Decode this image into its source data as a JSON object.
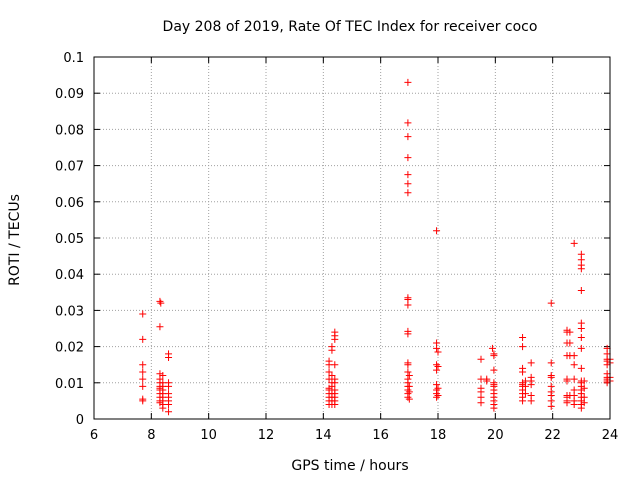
{
  "chart_data": {
    "type": "scatter",
    "title": "Day 208 of 2019, Rate Of TEC Index for receiver coco",
    "xlabel": "GPS time / hours",
    "ylabel": "ROTI / TECUs",
    "xlim": [
      6,
      24
    ],
    "ylim": [
      0,
      0.1
    ],
    "xticks": [
      6,
      8,
      10,
      12,
      14,
      16,
      18,
      20,
      22,
      24
    ],
    "yticks": [
      0,
      0.01,
      0.02,
      0.03,
      0.04,
      0.05,
      0.06,
      0.07,
      0.08,
      0.09,
      0.1
    ],
    "xtick_labels": [
      "6",
      "8",
      "10",
      "12",
      "14",
      "16",
      "18",
      "20",
      "22",
      "24"
    ],
    "ytick_labels": [
      "0",
      "0.01",
      "0.02",
      "0.03",
      "0.04",
      "0.05",
      "0.06",
      "0.07",
      "0.08",
      "0.09",
      "0.1"
    ],
    "grid": true,
    "marker": "+",
    "marker_color": "#ff0000",
    "series": [
      {
        "name": "ROTI",
        "points": [
          [
            7.7,
            0.029
          ],
          [
            7.7,
            0.022
          ],
          [
            7.7,
            0.015
          ],
          [
            7.7,
            0.013
          ],
          [
            7.7,
            0.011
          ],
          [
            7.7,
            0.009
          ],
          [
            7.7,
            0.0055
          ],
          [
            7.7,
            0.005
          ],
          [
            8.3,
            0.0325
          ],
          [
            8.33,
            0.032
          ],
          [
            8.3,
            0.0255
          ],
          [
            8.3,
            0.0125
          ],
          [
            8.3,
            0.011
          ],
          [
            8.3,
            0.01
          ],
          [
            8.3,
            0.009
          ],
          [
            8.3,
            0.0085
          ],
          [
            8.3,
            0.008
          ],
          [
            8.3,
            0.007
          ],
          [
            8.3,
            0.006
          ],
          [
            8.3,
            0.005
          ],
          [
            8.3,
            0.0045
          ],
          [
            8.4,
            0.012
          ],
          [
            8.4,
            0.01
          ],
          [
            8.4,
            0.009
          ],
          [
            8.4,
            0.008
          ],
          [
            8.4,
            0.007
          ],
          [
            8.4,
            0.006
          ],
          [
            8.4,
            0.005
          ],
          [
            8.4,
            0.004
          ],
          [
            8.4,
            0.003
          ],
          [
            8.6,
            0.018
          ],
          [
            8.6,
            0.017
          ],
          [
            8.6,
            0.01
          ],
          [
            8.6,
            0.009
          ],
          [
            8.6,
            0.007
          ],
          [
            8.6,
            0.006
          ],
          [
            8.6,
            0.005
          ],
          [
            8.6,
            0.004
          ],
          [
            8.6,
            0.002
          ],
          [
            14.2,
            0.016
          ],
          [
            14.2,
            0.015
          ],
          [
            14.2,
            0.013
          ],
          [
            14.2,
            0.011
          ],
          [
            14.2,
            0.0085
          ],
          [
            14.2,
            0.008
          ],
          [
            14.2,
            0.007
          ],
          [
            14.2,
            0.006
          ],
          [
            14.2,
            0.005
          ],
          [
            14.2,
            0.004
          ],
          [
            14.3,
            0.02
          ],
          [
            14.3,
            0.019
          ],
          [
            14.3,
            0.012
          ],
          [
            14.3,
            0.01
          ],
          [
            14.3,
            0.009
          ],
          [
            14.3,
            0.008
          ],
          [
            14.3,
            0.007
          ],
          [
            14.3,
            0.006
          ],
          [
            14.3,
            0.005
          ],
          [
            14.3,
            0.004
          ],
          [
            14.4,
            0.024
          ],
          [
            14.4,
            0.023
          ],
          [
            14.4,
            0.022
          ],
          [
            14.4,
            0.015
          ],
          [
            14.4,
            0.011
          ],
          [
            14.4,
            0.01
          ],
          [
            14.4,
            0.008
          ],
          [
            14.4,
            0.007
          ],
          [
            14.4,
            0.006
          ],
          [
            14.4,
            0.005
          ],
          [
            14.4,
            0.004
          ],
          [
            16.95,
            0.093
          ],
          [
            16.95,
            0.0818
          ],
          [
            16.95,
            0.078
          ],
          [
            16.95,
            0.0722
          ],
          [
            16.95,
            0.0675
          ],
          [
            16.95,
            0.065
          ],
          [
            16.95,
            0.0625
          ],
          [
            16.95,
            0.0335
          ],
          [
            16.95,
            0.033
          ],
          [
            16.95,
            0.0315
          ],
          [
            16.95,
            0.0242
          ],
          [
            16.95,
            0.0235
          ],
          [
            16.95,
            0.0155
          ],
          [
            16.95,
            0.015
          ],
          [
            16.95,
            0.013
          ],
          [
            16.95,
            0.011
          ],
          [
            16.95,
            0.01
          ],
          [
            16.95,
            0.009
          ],
          [
            16.95,
            0.008
          ],
          [
            16.95,
            0.007
          ],
          [
            16.95,
            0.006
          ],
          [
            17.0,
            0.012
          ],
          [
            17.0,
            0.009
          ],
          [
            17.0,
            0.0075
          ],
          [
            17.0,
            0.0055
          ],
          [
            17.95,
            0.052
          ],
          [
            17.95,
            0.021
          ],
          [
            17.95,
            0.0195
          ],
          [
            17.95,
            0.015
          ],
          [
            17.95,
            0.0135
          ],
          [
            17.95,
            0.0095
          ],
          [
            17.95,
            0.008
          ],
          [
            17.95,
            0.007
          ],
          [
            17.95,
            0.006
          ],
          [
            18.0,
            0.0185
          ],
          [
            18.0,
            0.0145
          ],
          [
            18.0,
            0.0085
          ],
          [
            18.0,
            0.0065
          ],
          [
            19.5,
            0.0165
          ],
          [
            19.5,
            0.011
          ],
          [
            19.5,
            0.0085
          ],
          [
            19.5,
            0.0075
          ],
          [
            19.5,
            0.006
          ],
          [
            19.5,
            0.0045
          ],
          [
            19.7,
            0.011
          ],
          [
            19.7,
            0.0105
          ],
          [
            19.9,
            0.0195
          ],
          [
            19.95,
            0.018
          ],
          [
            19.95,
            0.0175
          ],
          [
            19.95,
            0.0135
          ],
          [
            19.95,
            0.01
          ],
          [
            19.95,
            0.0095
          ],
          [
            19.95,
            0.009
          ],
          [
            19.95,
            0.008
          ],
          [
            19.95,
            0.007
          ],
          [
            19.95,
            0.006
          ],
          [
            19.95,
            0.005
          ],
          [
            19.95,
            0.004
          ],
          [
            19.95,
            0.003
          ],
          [
            20.95,
            0.0225
          ],
          [
            20.95,
            0.02
          ],
          [
            20.95,
            0.014
          ],
          [
            20.95,
            0.013
          ],
          [
            20.95,
            0.01
          ],
          [
            20.95,
            0.0095
          ],
          [
            20.95,
            0.009
          ],
          [
            20.95,
            0.008
          ],
          [
            20.95,
            0.007
          ],
          [
            20.95,
            0.006
          ],
          [
            20.95,
            0.005
          ],
          [
            21.05,
            0.0105
          ],
          [
            21.05,
            0.009
          ],
          [
            21.05,
            0.007
          ],
          [
            21.25,
            0.0155
          ],
          [
            21.25,
            0.0115
          ],
          [
            21.25,
            0.0105
          ],
          [
            21.25,
            0.0095
          ],
          [
            21.25,
            0.0065
          ],
          [
            21.25,
            0.005
          ],
          [
            21.95,
            0.032
          ],
          [
            21.95,
            0.0155
          ],
          [
            21.95,
            0.012
          ],
          [
            21.95,
            0.0115
          ],
          [
            21.95,
            0.009
          ],
          [
            21.95,
            0.0075
          ],
          [
            21.95,
            0.0065
          ],
          [
            21.95,
            0.005
          ],
          [
            21.95,
            0.0035
          ],
          [
            22.5,
            0.0245
          ],
          [
            22.5,
            0.024
          ],
          [
            22.5,
            0.021
          ],
          [
            22.5,
            0.0175
          ],
          [
            22.5,
            0.011
          ],
          [
            22.5,
            0.0105
          ],
          [
            22.5,
            0.0065
          ],
          [
            22.5,
            0.006
          ],
          [
            22.5,
            0.005
          ],
          [
            22.5,
            0.0045
          ],
          [
            22.6,
            0.024
          ],
          [
            22.6,
            0.021
          ],
          [
            22.6,
            0.0175
          ],
          [
            22.6,
            0.0065
          ],
          [
            22.75,
            0.0485
          ],
          [
            22.75,
            0.0175
          ],
          [
            22.75,
            0.015
          ],
          [
            22.75,
            0.011
          ],
          [
            22.75,
            0.008
          ],
          [
            22.75,
            0.0065
          ],
          [
            22.75,
            0.005
          ],
          [
            22.75,
            0.004
          ],
          [
            23.0,
            0.0455
          ],
          [
            23.0,
            0.044
          ],
          [
            23.0,
            0.0425
          ],
          [
            23.0,
            0.0415
          ],
          [
            23.0,
            0.0355
          ],
          [
            23.0,
            0.0265
          ],
          [
            23.0,
            0.025
          ],
          [
            23.0,
            0.0225
          ],
          [
            23.0,
            0.0195
          ],
          [
            23.0,
            0.014
          ],
          [
            23.0,
            0.0105
          ],
          [
            23.0,
            0.01
          ],
          [
            23.0,
            0.009
          ],
          [
            23.0,
            0.008
          ],
          [
            23.0,
            0.007
          ],
          [
            23.0,
            0.006
          ],
          [
            23.0,
            0.005
          ],
          [
            23.0,
            0.004
          ],
          [
            23.0,
            0.003
          ],
          [
            23.1,
            0.0105
          ],
          [
            23.1,
            0.0085
          ],
          [
            23.1,
            0.006
          ],
          [
            23.1,
            0.0045
          ],
          [
            23.9,
            0.0195
          ],
          [
            23.9,
            0.018
          ],
          [
            23.9,
            0.0165
          ],
          [
            23.9,
            0.016
          ],
          [
            23.9,
            0.015
          ],
          [
            23.9,
            0.0125
          ],
          [
            23.9,
            0.0115
          ],
          [
            23.9,
            0.011
          ],
          [
            23.9,
            0.0105
          ],
          [
            23.9,
            0.01
          ],
          [
            24.0,
            0.0165
          ],
          [
            24.0,
            0.0155
          ],
          [
            24.0,
            0.0115
          ],
          [
            24.0,
            0.0105
          ]
        ]
      }
    ]
  }
}
